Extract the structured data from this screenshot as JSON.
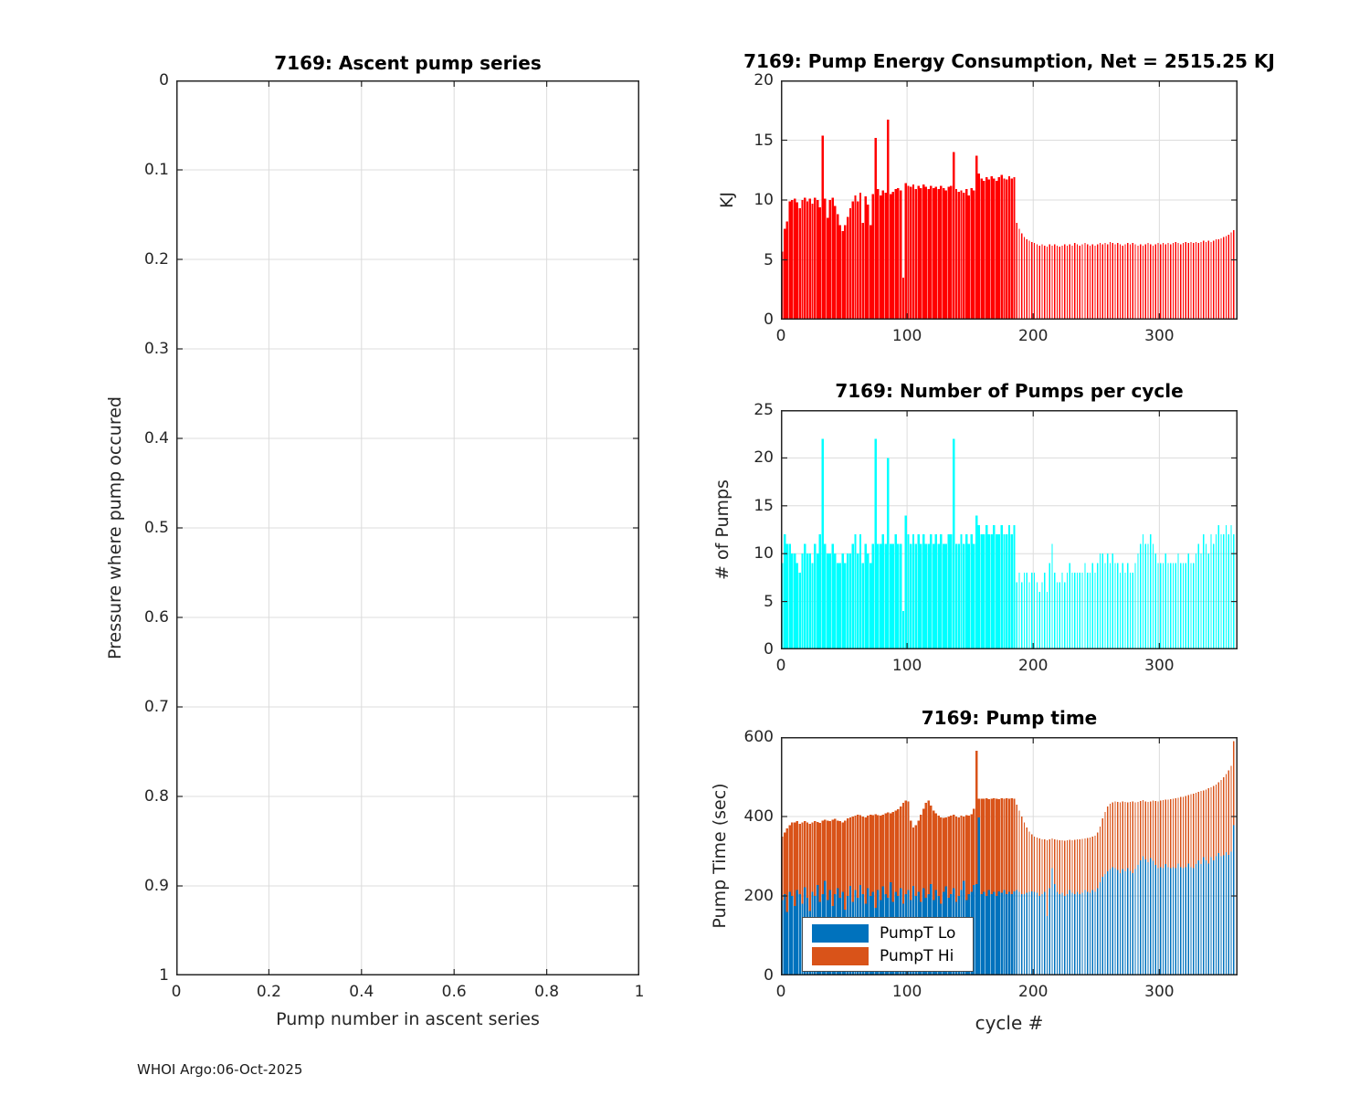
{
  "figure": {
    "footer": "WHOI Argo:06-Oct-2025"
  },
  "style": {
    "axis_color": "#262626",
    "grid_color": "#dcdcdc",
    "red": "#ff0000",
    "cyan": "#00ffff",
    "blue": "#0072bd",
    "orange": "#d95319"
  },
  "chart_data": [
    {
      "type": "bar",
      "title": "7169: Ascent pump series",
      "xlabel": "Pump number in ascent series",
      "ylabel": "Pressure where pump occured",
      "xlim": [
        0,
        1
      ],
      "ylim": [
        0,
        1
      ],
      "y_inverted": true,
      "grid": true,
      "xticks": [
        "0",
        "0.2",
        "0.4",
        "0.6",
        "0.8",
        "1"
      ],
      "yticks": [
        "0",
        "0.1",
        "0.2",
        "0.3",
        "0.4",
        "0.5",
        "0.6",
        "0.7",
        "0.8",
        "0.9",
        "1"
      ],
      "colors": [],
      "segments": []
    },
    {
      "type": "bar",
      "title": "7169: Pump Energy Consumption,  Net = 2515.25 KJ",
      "xlabel": "",
      "ylabel": "KJ",
      "net_kj": 2515.25,
      "xlim": [
        0,
        362
      ],
      "ylim": [
        0,
        20
      ],
      "y_inverted": false,
      "grid": true,
      "xticks": [
        "0",
        "100",
        "200",
        "300"
      ],
      "yticks": [
        "0",
        "5",
        "10",
        "15",
        "20"
      ],
      "colors": [
        "#ff0000"
      ],
      "segments": [
        {
          "x_start": 1,
          "x_step": 2,
          "width_frac": 0.88,
          "values": [
            [
              5.7,
              7.6,
              8.2,
              9.9,
              10.0,
              10.1,
              9.8,
              9.3,
              10.0,
              10.2,
              9.9,
              10.1,
              9.7,
              10.2,
              10.0,
              9.4,
              15.4,
              10.1,
              8.5,
              10.0,
              10.2,
              9.5,
              8.8,
              7.9,
              7.4,
              7.9,
              8.6,
              9.3,
              9.9,
              10.4,
              9.9,
              10.6,
              8.1,
              10.3,
              9.6,
              7.9,
              10.5,
              15.2,
              10.9,
              10.4,
              10.8,
              10.6,
              16.7,
              10.5,
              10.7,
              10.9,
              11.0,
              10.8,
              3.5,
              11.4,
              11.2,
              11.1,
              11.3,
              10.9,
              11.2,
              11.0,
              11.3,
              11.1,
              10.9,
              11.2,
              11.0,
              11.1,
              10.9,
              11.2,
              11.0,
              10.8,
              11.1,
              11.2,
              14.0,
              10.9,
              10.7,
              10.8,
              10.6,
              10.9,
              10.4,
              11.0,
              10.8,
              13.7,
              12.2,
              11.8,
              11.6,
              11.9,
              11.7,
              12.0,
              11.8,
              11.6,
              11.9,
              12.1,
              11.8,
              11.7,
              12.0,
              11.8,
              11.9
            ]
          ]
        },
        {
          "x_start": 187,
          "x_step": 2,
          "width_frac": 0.45,
          "values": [
            [
              8.1,
              7.6,
              7.2,
              6.9,
              6.7,
              6.6,
              6.5,
              6.4,
              6.3,
              6.2,
              6.3,
              6.2,
              6.1,
              6.3,
              6.2,
              6.3,
              6.2,
              6.1,
              6.2,
              6.3,
              6.2,
              6.3,
              6.2,
              6.4,
              6.3,
              6.2,
              6.3,
              6.4,
              6.3,
              6.2,
              6.3,
              6.2,
              6.3,
              6.4,
              6.3,
              6.4,
              6.3,
              6.5,
              6.4,
              6.3,
              6.4,
              6.3,
              6.2,
              6.3,
              6.4,
              6.3,
              6.4,
              6.3,
              6.2,
              6.3,
              6.2,
              6.3,
              6.4,
              6.3,
              6.2,
              6.3,
              6.4,
              6.3,
              6.4,
              6.3,
              6.4,
              6.3,
              6.4,
              6.5,
              6.4,
              6.3,
              6.4,
              6.5,
              6.4,
              6.5,
              6.4,
              6.5,
              6.4,
              6.5,
              6.6,
              6.5,
              6.6,
              6.5,
              6.6,
              6.7,
              6.7,
              6.8,
              6.9,
              7.0,
              7.1,
              7.3,
              7.5
            ]
          ]
        }
      ]
    },
    {
      "type": "bar",
      "title": "7169: Number of Pumps per cycle",
      "xlabel": "",
      "ylabel": "# of Pumps",
      "xlim": [
        0,
        362
      ],
      "ylim": [
        0,
        25
      ],
      "y_inverted": false,
      "grid": true,
      "xticks": [
        "0",
        "100",
        "200",
        "300"
      ],
      "yticks": [
        "0",
        "5",
        "10",
        "15",
        "20",
        "25"
      ],
      "colors": [
        "#00ffff"
      ],
      "segments": [
        {
          "x_start": 1,
          "x_step": 2,
          "width_frac": 0.88,
          "values": [
            [
              9,
              12,
              11,
              11,
              10,
              10,
              9,
              8,
              10,
              11,
              10,
              10,
              9,
              11,
              10,
              12,
              22,
              11,
              10,
              10,
              11,
              10,
              9,
              9,
              10,
              9,
              10,
              10,
              11,
              12,
              10,
              12,
              9,
              11,
              10,
              9,
              11,
              22,
              11,
              11,
              12,
              11,
              20,
              11,
              11,
              12,
              11,
              11,
              4,
              14,
              12,
              11,
              12,
              11,
              12,
              11,
              12,
              11,
              11,
              12,
              11,
              12,
              11,
              12,
              11,
              11,
              12,
              12,
              22,
              11,
              11,
              12,
              11,
              12,
              11,
              12,
              11,
              14,
              13,
              12,
              12,
              13,
              12,
              12,
              13,
              12,
              12,
              13,
              12,
              12,
              13,
              12,
              13
            ]
          ]
        },
        {
          "x_start": 187,
          "x_step": 2,
          "width_frac": 0.45,
          "values": [
            [
              7,
              8,
              7,
              8,
              8,
              7,
              8,
              8,
              7,
              6,
              7,
              8,
              6,
              9,
              11,
              8,
              7,
              7,
              8,
              7,
              8,
              9,
              8,
              8,
              8,
              8,
              8,
              9,
              8,
              8,
              9,
              8,
              9,
              10,
              10,
              9,
              10,
              9,
              10,
              9,
              9,
              8,
              9,
              8,
              9,
              8,
              8,
              9,
              10,
              11,
              12,
              11,
              11,
              12,
              11,
              10,
              9,
              9,
              9,
              10,
              9,
              9,
              9,
              9,
              10,
              9,
              9,
              9,
              10,
              9,
              9,
              10,
              11,
              10,
              12,
              11,
              10,
              12,
              11,
              12,
              13,
              12,
              12,
              13,
              12,
              13,
              12
            ]
          ]
        }
      ]
    },
    {
      "type": "stacked-bar",
      "title": "7169: Pump time",
      "xlabel": "cycle #",
      "ylabel": "Pump Time (sec)",
      "legend": [
        "PumpT Lo",
        "PumpT Hi"
      ],
      "xlim": [
        0,
        362
      ],
      "ylim": [
        0,
        600
      ],
      "y_inverted": false,
      "grid": true,
      "xticks": [
        "0",
        "100",
        "200",
        "300"
      ],
      "yticks": [
        "0",
        "200",
        "400",
        "600"
      ],
      "colors": [
        "#0072bd",
        "#d95319"
      ],
      "segments": [
        {
          "x_start": 1,
          "x_step": 2,
          "width_frac": 0.88,
          "values": [
            [
              190,
              205,
              160,
              210,
              200,
              175,
              215,
              205,
              180,
              222,
              195,
              162,
              210,
              200,
              228,
              185,
              205,
              238,
              190,
              215,
              175,
              205,
              220,
              195,
              210,
              165,
              200,
              225,
              185,
              215,
              195,
              228,
              205,
              180,
              220,
              200,
              210,
              170,
              215,
              190,
              224,
              205,
              195,
              235,
              185,
              210,
              200,
              220,
              180,
              205,
              215,
              190,
              225,
              200,
              210,
              185,
              220,
              195,
              205,
              230,
              190,
              215,
              200,
              180,
              210,
              224,
              195,
              205,
              220,
              185,
              200,
              215,
              238,
              190,
              205,
              210,
              228,
              230,
              398,
              205,
              210,
              200,
              215,
              205,
              210,
              200,
              212,
              208,
              215,
              205,
              210,
              205,
              212
            ],
            [
              160,
              155,
              210,
              168,
              185,
              210,
              173,
              177,
              205,
              166,
              190,
              220,
              175,
              188,
              158,
              199,
              185,
              154,
              200,
              173,
              217,
              189,
              170,
              193,
              175,
              225,
              195,
              173,
              215,
              187,
              210,
              175,
              195,
              218,
              182,
              205,
              193,
              236,
              189,
              212,
              181,
              203,
              215,
              173,
              227,
              205,
              218,
              205,
              255,
              235,
              223,
              200,
              147,
              178,
              180,
              220,
              200,
              240,
              235,
              198,
              225,
              193,
              202,
              218,
              186,
              174,
              205,
              197,
              185,
              215,
              198,
              187,
              162,
              214,
              197,
              196,
              192,
              335,
              47,
              240,
              235,
              246,
              229,
              240,
              236,
              245,
              232,
              238,
              230,
              241,
              235,
              241,
              233
            ]
          ]
        },
        {
          "x_start": 187,
          "x_step": 2,
          "width_frac": 0.45,
          "values": [
            [
              215,
              210,
              205,
              205,
              208,
              210,
              212,
              210,
              208,
              200,
              205,
              210,
              150,
              220,
              270,
              230,
              210,
              205,
              208,
              200,
              205,
              215,
              208,
              205,
              210,
              205,
              208,
              215,
              210,
              208,
              215,
              210,
              220,
              235,
              248,
              255,
              262,
              268,
              272,
              270,
              265,
              258,
              268,
              262,
              270,
              263,
              258,
              268,
              278,
              290,
              300,
              292,
              285,
              295,
              288,
              278,
              270,
              272,
              270,
              280,
              272,
              270,
              272,
              270,
              282,
              272,
              270,
              272,
              282,
              272,
              270,
              280,
              290,
              280,
              298,
              290,
              282,
              298,
              290,
              300,
              308,
              300,
              302,
              310,
              304,
              312,
              378
            ],
            [
              215,
              205,
              195,
              180,
              164,
              152,
              143,
              140,
              139,
              145,
              138,
              132,
              190,
              122,
              75,
              112,
              131,
              135,
              132,
              139,
              135,
              126,
              132,
              136,
              132,
              138,
              136,
              130,
              136,
              139,
              134,
              142,
              140,
              140,
              147,
              157,
              163,
              164,
              164,
              168,
              172,
              178,
              170,
              175,
              166,
              174,
              180,
              168,
              159,
              149,
              141,
              146,
              152,
              143,
              152,
              161,
              168,
              168,
              171,
              162,
              171,
              174,
              173,
              176,
              165,
              177,
              180,
              180,
              172,
              184,
              188,
              180,
              172,
              184,
              168,
              178,
              189,
              176,
              187,
              181,
              178,
              192,
              197,
              197,
              212,
              216,
              212
            ]
          ]
        }
      ]
    }
  ]
}
